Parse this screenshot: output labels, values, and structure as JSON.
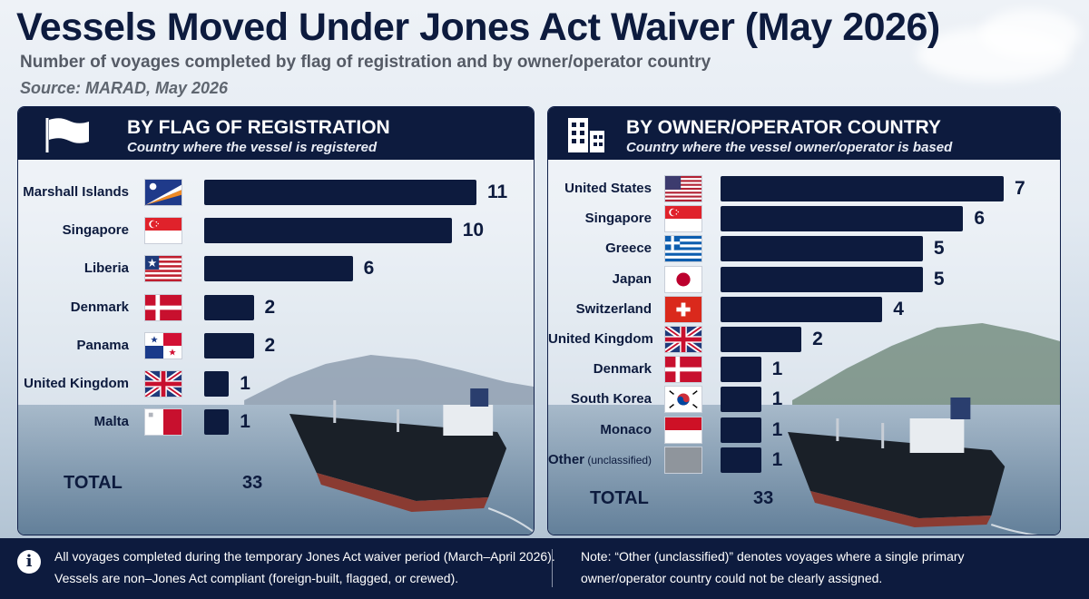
{
  "header": {
    "title": "Vessels Moved Under Jones Act Waiver (May 2026)",
    "subtitle": "Number of voyages completed by flag of registration and by owner/operator country",
    "source": "Source: MARAD, May 2026"
  },
  "chart_data": [
    {
      "type": "bar",
      "orientation": "horizontal",
      "title": "BY FLAG OF REGISTRATION",
      "subtitle": "Country where the vessel is registered",
      "icon": "flag-icon",
      "categories": [
        "Marshall Islands",
        "Singapore",
        "Liberia",
        "Denmark",
        "Panama",
        "United Kingdom",
        "Malta"
      ],
      "values": [
        11,
        10,
        6,
        2,
        2,
        1,
        1
      ],
      "flags": [
        "marshall-islands",
        "singapore",
        "liberia",
        "denmark",
        "panama",
        "united-kingdom",
        "malta"
      ],
      "total_label": "TOTAL",
      "total_value": "33",
      "bar_color": "#0d1b3e"
    },
    {
      "type": "bar",
      "orientation": "horizontal",
      "title": "BY OWNER/OPERATOR COUNTRY",
      "subtitle": "Country where the vessel owner/operator is based",
      "icon": "building-icon",
      "categories": [
        "United States",
        "Singapore",
        "Greece",
        "Japan",
        "Switzerland",
        "United Kingdom",
        "Denmark",
        "South Korea",
        "Monaco",
        "Other"
      ],
      "category_notes": [
        "",
        "",
        "",
        "",
        "",
        "",
        "",
        "",
        "",
        "(unclassified)"
      ],
      "values": [
        7,
        6,
        5,
        5,
        4,
        2,
        1,
        1,
        1,
        1
      ],
      "flags": [
        "united-states",
        "singapore",
        "greece",
        "japan",
        "switzerland",
        "united-kingdom",
        "denmark",
        "south-korea",
        "monaco",
        "grey"
      ],
      "total_label": "TOTAL",
      "total_value": "33",
      "bar_color": "#0d1b3e"
    }
  ],
  "footer": {
    "note_left_1": "All voyages completed during the temporary Jones Act waiver period (March–April 2026).",
    "note_left_2": "Vessels are non–Jones Act compliant (foreign-built, flagged, or crewed).",
    "note_right_1": "Note: “Other (unclassified)” denotes voyages where a single primary",
    "note_right_2": "owner/operator country could not be clearly assigned.",
    "icon": "info-icon"
  },
  "colors": {
    "navy": "#0d1b3e",
    "background": "#e3eaf2"
  }
}
